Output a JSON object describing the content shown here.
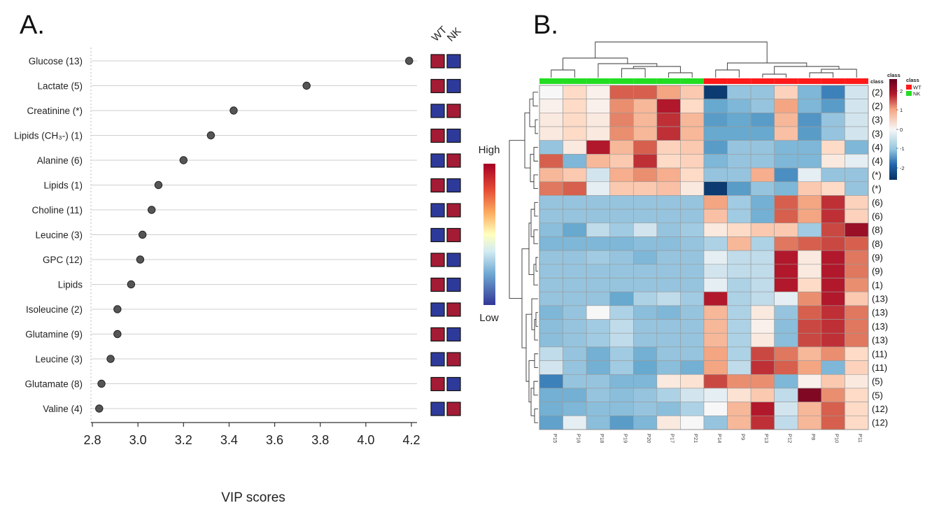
{
  "panel_a_letter": "A.",
  "panel_b_letter": "B.",
  "chart_data": [
    {
      "type": "scatter",
      "panel": "A.",
      "title": "",
      "xlabel": "VIP scores",
      "ylabel": "",
      "xlim": [
        2.78,
        4.25
      ],
      "xticks": [
        "2.8",
        "3.0",
        "3.2",
        "3.4",
        "3.6",
        "3.8",
        "4.0",
        "4.2"
      ],
      "grid": "horizontal",
      "categories": [
        "Glucose (13)",
        "Lactate (5)",
        "Creatinine (*)",
        "Lipids (CH₃-) (1)",
        "Alanine (6)",
        "Lipids (1)",
        "Choline (11)",
        "Leucine (3)",
        "GPC (12)",
        "Lipids",
        "Isoleucine (2)",
        "Glutamine (9)",
        "Leucine (3)",
        "Glutamate (8)",
        "Valine (4)"
      ],
      "values": [
        4.19,
        3.74,
        3.42,
        3.32,
        3.2,
        3.09,
        3.06,
        3.02,
        3.01,
        2.97,
        2.91,
        2.91,
        2.88,
        2.84,
        2.83
      ],
      "group_labels": [
        "WT",
        "NK"
      ],
      "group_levels": [
        [
          "high",
          "low"
        ],
        [
          "high",
          "low"
        ],
        [
          "low",
          "high"
        ],
        [
          "high",
          "low"
        ],
        [
          "low",
          "high"
        ],
        [
          "high",
          "low"
        ],
        [
          "low",
          "high"
        ],
        [
          "low",
          "high"
        ],
        [
          "high",
          "low"
        ],
        [
          "high",
          "low"
        ],
        [
          "low",
          "high"
        ],
        [
          "high",
          "low"
        ],
        [
          "low",
          "high"
        ],
        [
          "high",
          "low"
        ],
        [
          "low",
          "high"
        ]
      ],
      "colors": {
        "high": "#a31b35",
        "low": "#2e3a9a",
        "point": "#555555"
      }
    },
    {
      "type": "heatmap",
      "panel": "B.",
      "columns": [
        "P15",
        "P16",
        "P18",
        "P19",
        "P20",
        "P17",
        "P21",
        "P14",
        "P9",
        "P13",
        "P12",
        "P8",
        "P10",
        "P11"
      ],
      "column_class": [
        "NK",
        "NK",
        "NK",
        "NK",
        "NK",
        "NK",
        "NK",
        "WT",
        "WT",
        "WT",
        "WT",
        "WT",
        "WT",
        "WT"
      ],
      "rows": [
        "(2)",
        "(2)",
        "(3)",
        "(3)",
        "(4)",
        "(4)",
        "(*)",
        "(*)",
        "(6)",
        "(6)",
        "(8)",
        "(8)",
        "(9)",
        "(9)",
        "(1)",
        "(13)",
        "(13)",
        "(13)",
        "(13)",
        "(11)",
        "(11)",
        "(5)",
        "(5)",
        "(12)",
        "(12)"
      ],
      "values": [
        [
          0.0,
          0.4,
          0.1,
          1.6,
          1.6,
          1.0,
          0.6,
          -2.4,
          -0.6,
          -0.6,
          0.5,
          -0.8,
          -1.6,
          -0.2
        ],
        [
          0.1,
          0.4,
          0.1,
          1.2,
          0.8,
          2.2,
          0.4,
          -1.0,
          -0.8,
          -0.6,
          1.0,
          -0.8,
          -1.2,
          -0.2
        ],
        [
          0.2,
          0.4,
          0.2,
          1.3,
          0.8,
          2.0,
          0.8,
          -1.2,
          -1.0,
          -1.2,
          0.8,
          -1.3,
          -0.6,
          -0.2
        ],
        [
          0.2,
          0.4,
          0.2,
          1.2,
          0.8,
          2.0,
          0.8,
          -1.0,
          -1.0,
          -1.0,
          0.7,
          -1.2,
          -0.6,
          -0.2
        ],
        [
          -0.6,
          0.2,
          2.2,
          0.8,
          1.6,
          0.5,
          0.6,
          -1.2,
          -0.6,
          -0.6,
          -0.8,
          -0.8,
          0.4,
          -0.8
        ],
        [
          1.6,
          -0.8,
          0.8,
          0.6,
          2.0,
          0.4,
          0.5,
          -0.8,
          -0.6,
          -0.6,
          -0.8,
          -0.8,
          0.2,
          -0.1
        ],
        [
          0.8,
          0.6,
          -0.2,
          0.9,
          1.2,
          0.9,
          0.4,
          -0.6,
          -0.6,
          0.9,
          -1.4,
          -0.1,
          -0.6,
          -0.6
        ],
        [
          1.4,
          1.6,
          -0.1,
          0.6,
          0.6,
          0.7,
          0.2,
          -2.4,
          -1.2,
          -0.6,
          -0.8,
          0.6,
          0.4,
          -0.6
        ],
        [
          -0.6,
          -0.6,
          -0.6,
          -0.6,
          -0.6,
          -0.6,
          -0.6,
          1.0,
          -0.5,
          -0.9,
          1.6,
          1.0,
          2.0,
          0.5
        ],
        [
          -0.6,
          -0.6,
          -0.6,
          -0.6,
          -0.6,
          -0.6,
          -0.6,
          0.7,
          -0.5,
          -0.9,
          1.6,
          1.0,
          2.0,
          0.5
        ],
        [
          -0.7,
          -1.0,
          -0.3,
          -0.5,
          -0.2,
          -0.6,
          -0.5,
          0.2,
          0.4,
          0.6,
          0.6,
          -0.5,
          1.8,
          2.4
        ],
        [
          -0.8,
          -0.8,
          -0.8,
          -0.8,
          -0.7,
          -0.7,
          -0.6,
          -0.4,
          0.8,
          -0.4,
          1.4,
          1.6,
          1.8,
          1.6
        ],
        [
          -0.6,
          -0.6,
          -0.5,
          -0.6,
          -0.8,
          -0.6,
          -0.6,
          -0.1,
          -0.3,
          -0.3,
          2.2,
          0.2,
          2.2,
          1.4
        ],
        [
          -0.6,
          -0.6,
          -0.6,
          -0.6,
          -0.6,
          -0.6,
          -0.6,
          -0.2,
          -0.3,
          -0.3,
          2.2,
          0.2,
          2.2,
          1.4
        ],
        [
          -0.6,
          -0.6,
          -0.6,
          -0.6,
          -0.6,
          -0.6,
          -0.6,
          -0.1,
          -0.4,
          -0.3,
          2.2,
          0.4,
          2.2,
          1.2
        ],
        [
          -0.6,
          -0.6,
          -0.6,
          -1.0,
          -0.4,
          -0.3,
          -0.5,
          2.2,
          -0.4,
          -0.3,
          -0.1,
          1.2,
          2.2,
          0.6
        ],
        [
          -0.8,
          -0.6,
          0.0,
          -0.4,
          -0.7,
          -0.8,
          -0.6,
          0.8,
          -0.4,
          0.2,
          -0.6,
          1.6,
          2.0,
          1.4
        ],
        [
          -0.7,
          -0.6,
          -0.5,
          -0.3,
          -0.6,
          -0.6,
          -0.6,
          0.8,
          -0.4,
          0.1,
          -0.7,
          1.8,
          2.0,
          1.4
        ],
        [
          -0.7,
          -0.6,
          -0.5,
          -0.3,
          -0.6,
          -0.6,
          -0.6,
          0.8,
          -0.4,
          0.2,
          -0.7,
          1.8,
          2.0,
          1.4
        ],
        [
          -0.3,
          -0.6,
          -0.9,
          -0.5,
          -0.9,
          -0.6,
          -0.6,
          1.0,
          -0.4,
          1.8,
          1.4,
          0.8,
          1.2,
          0.4
        ],
        [
          -0.2,
          -0.6,
          -0.9,
          -0.5,
          -1.0,
          -0.7,
          -0.9,
          1.0,
          -0.3,
          2.0,
          1.6,
          1.0,
          -0.8,
          0.5
        ],
        [
          -1.6,
          -0.6,
          -0.6,
          -0.8,
          -0.8,
          0.2,
          0.3,
          1.8,
          1.2,
          1.2,
          -0.8,
          0.1,
          0.6,
          0.2
        ],
        [
          -0.9,
          -0.9,
          -0.6,
          -0.7,
          -0.6,
          -0.4,
          -0.2,
          -0.1,
          0.3,
          0.6,
          -0.3,
          2.6,
          1.2,
          0.4
        ],
        [
          -0.9,
          -0.8,
          -0.7,
          -0.7,
          -0.6,
          -0.7,
          -0.4,
          0.0,
          0.8,
          2.2,
          -0.2,
          0.8,
          1.6,
          0.4
        ],
        [
          -1.1,
          -0.1,
          -0.7,
          -1.2,
          -0.8,
          0.2,
          0.0,
          -0.6,
          0.8,
          2.0,
          -0.3,
          0.8,
          1.6,
          0.4
        ]
      ],
      "color_key": {
        "title": "class",
        "ticks": [
          "2",
          "1",
          "0",
          "-1",
          "-2"
        ],
        "range": [
          -2.5,
          2.5
        ]
      },
      "class_legend": {
        "title": "class",
        "entries": [
          {
            "label": "WT",
            "color": "#ff1a1a"
          },
          {
            "label": "NK",
            "color": "#22dd22"
          }
        ]
      },
      "scale_legend": {
        "high": "High",
        "low": "Low"
      },
      "class_bar_label": "class"
    }
  ]
}
